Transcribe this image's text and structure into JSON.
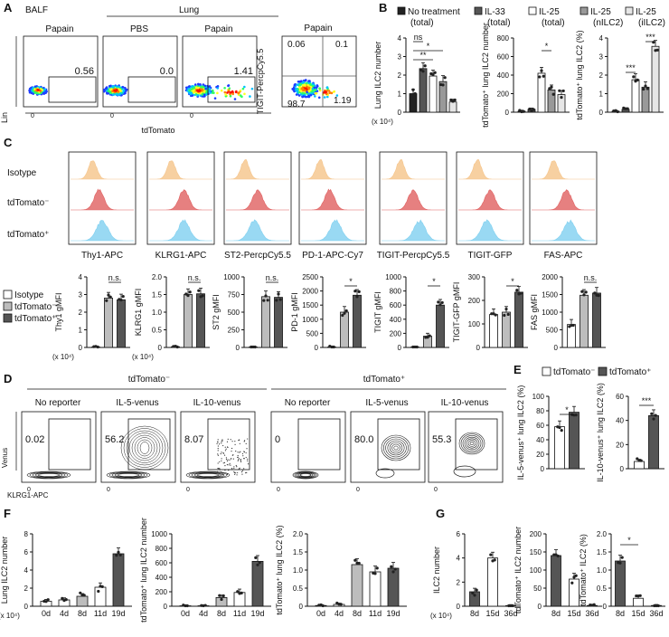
{
  "panels": {
    "A": "A",
    "B": "B",
    "C": "C",
    "D": "D",
    "E": "E",
    "F": "F",
    "G": "G"
  },
  "colors": {
    "isotype": "#f5c48a",
    "neg": "#e06060",
    "pos": "#7fd0f0",
    "bar_white": "#ffffff",
    "bar_light": "#bdbdbd",
    "bar_mid": "#8c8c8c",
    "bar_dark": "#555555",
    "bar_black": "#222222"
  },
  "panelA": {
    "balf_label": "BALF",
    "lung_label": "Lung",
    "plot_titles": [
      "Papain",
      "PBS",
      "Papain",
      "Papain"
    ],
    "gate_values": [
      "0.56",
      "0.0",
      "1.41"
    ],
    "quadrants": [
      "0.06",
      "0.1",
      "98.7",
      "1.19"
    ],
    "ylabel": "Lin",
    "xlabel": "tdTomato",
    "ylabel4": "TIGIT-PercpCy5.5",
    "tick": "0"
  },
  "panelB": {
    "legend": [
      {
        "label": "No treatment",
        "sub": "(total)",
        "color": "#222222"
      },
      {
        "label": "IL-33",
        "sub": "(total)",
        "color": "#555555"
      },
      {
        "label": "IL-25",
        "sub": "(total)",
        "color": "#ffffff"
      },
      {
        "label": "IL-25",
        "sub": "(nILC2)",
        "color": "#999999"
      },
      {
        "label": "IL-25",
        "sub": "(iILC2)",
        "color": "#e6e6e6"
      }
    ],
    "chart_data": [
      {
        "type": "bar",
        "ylabel": "Lung ILC2 number",
        "unit": "(x 10⁴)",
        "ylim": [
          0,
          4
        ],
        "yticks": [
          "0",
          "1",
          "2",
          "3",
          "4"
        ],
        "values": [
          1.0,
          2.35,
          1.95,
          1.65,
          0.55
        ],
        "sig": [
          "**",
          "*",
          "ns"
        ]
      },
      {
        "type": "bar",
        "ylabel": "tdTomato⁺ lung ILC2 number",
        "ylim": [
          0,
          800
        ],
        "yticks": [
          "0",
          "200",
          "400",
          "600",
          "800"
        ],
        "values": [
          10,
          30,
          420,
          240,
          190
        ],
        "sig": [
          "*"
        ]
      },
      {
        "type": "bar",
        "ylabel": "tdTomato⁺ lung ILC2 (%)",
        "ylim": [
          0,
          4
        ],
        "yticks": [
          "0",
          "1",
          "2",
          "3",
          "4"
        ],
        "values": [
          0.05,
          0.15,
          1.75,
          1.35,
          3.55
        ],
        "sig": [
          "***",
          "***"
        ]
      }
    ]
  },
  "panelC": {
    "row_labels": [
      "Isotype",
      "tdTomato⁻",
      "tdTomato⁺"
    ],
    "markers": [
      "Thy1-APC",
      "KLRG1-APC",
      "ST2-PercpCy5.5",
      "PD-1-APC-Cy7",
      "TIGIT-PercpCy5.5",
      "TIGIT-GFP",
      "FAS-APC"
    ],
    "legend": [
      "Isotype",
      "tdTomato⁻",
      "tdTomato⁺"
    ],
    "chart_data": [
      {
        "type": "bar",
        "ylabel": "Thy1 gMFI",
        "unit": "(x 10⁴)",
        "ylim": [
          0,
          4
        ],
        "yticks": [
          "0",
          "1",
          "2",
          "3",
          "4"
        ],
        "values": [
          0.02,
          2.8,
          2.7
        ],
        "sig": "n.s."
      },
      {
        "type": "bar",
        "ylabel": "KLRG1 gMFI",
        "unit": "(x 10⁴)",
        "ylim": [
          0,
          2
        ],
        "yticks": [
          "0",
          "0.5",
          "1.0",
          "1.5",
          "2.0"
        ],
        "values": [
          0.02,
          1.5,
          1.52
        ],
        "sig": "n.s."
      },
      {
        "type": "bar",
        "ylabel": "ST2 gMFI",
        "ylim": [
          0,
          1000
        ],
        "yticks": [
          "0",
          "250",
          "500",
          "750",
          "1000"
        ],
        "values": [
          5,
          720,
          710
        ],
        "sig": "n.s."
      },
      {
        "type": "bar",
        "ylabel": "PD-1 gMFI",
        "ylim": [
          0,
          2500
        ],
        "yticks": [
          "0",
          "500",
          "1000",
          "1500",
          "2000",
          "2500"
        ],
        "values": [
          10,
          1250,
          1850
        ],
        "sig": "*"
      },
      {
        "type": "bar",
        "ylabel": "TIGIT gMFI",
        "ylim": [
          0,
          1000
        ],
        "yticks": [
          "0",
          "200",
          "400",
          "600",
          "800",
          "1000"
        ],
        "values": [
          5,
          160,
          600
        ],
        "sig": "*"
      },
      {
        "type": "bar",
        "ylabel": "TIGIT-GFP gMFI",
        "ylim": [
          0,
          300
        ],
        "yticks": [
          "0",
          "100",
          "200",
          "300"
        ],
        "values": [
          140,
          150,
          235
        ],
        "sig": "*"
      },
      {
        "type": "bar",
        "ylabel": "FAS gMFI",
        "ylim": [
          0,
          2000
        ],
        "yticks": [
          "0",
          "500",
          "1000",
          "1500",
          "2000"
        ],
        "values": [
          650,
          1480,
          1540
        ],
        "sig": "n.s."
      }
    ]
  },
  "panelD": {
    "group_neg": "tdTomato⁻",
    "group_pos": "tdTomato⁺",
    "titles": [
      "No reporter",
      "IL-5-venus",
      "IL-10-venus",
      "No reporter",
      "IL-5-venus",
      "IL-10-venus"
    ],
    "values": [
      "0.02",
      "56.2",
      "8.07",
      "0",
      "80.0",
      "55.3"
    ],
    "ylabel": "Venus",
    "xlabel": "KLRG1-APC",
    "tick": "0"
  },
  "panelE": {
    "legend": [
      "tdTomato⁻",
      "tdTomato⁺"
    ],
    "chart_data": [
      {
        "type": "bar",
        "ylabel": "IL-5-venus⁺ lung ILC2 (%)",
        "ylim": [
          0,
          100
        ],
        "yticks": [
          "0",
          "20",
          "40",
          "60",
          "80",
          "100"
        ],
        "values": [
          58,
          78
        ],
        "sig": "*"
      },
      {
        "type": "bar",
        "ylabel": "IL-10-venus⁺ lung ILC2 (%)",
        "ylim": [
          0,
          60
        ],
        "yticks": [
          "0",
          "20",
          "40",
          "60"
        ],
        "values": [
          6,
          44
        ],
        "sig": "***"
      }
    ]
  },
  "panelF": {
    "chart_data": [
      {
        "type": "bar",
        "categories": [
          "0d",
          "4d",
          "8d",
          "11d",
          "19d"
        ],
        "ylabel": "Lung ILC2 number",
        "unit": "(x 10⁴)",
        "ylim": [
          0,
          8
        ],
        "yticks": [
          "0",
          "2",
          "4",
          "6",
          "8"
        ],
        "values": [
          0.55,
          0.7,
          1.1,
          2.1,
          5.8
        ]
      },
      {
        "type": "bar",
        "categories": [
          "0d",
          "4d",
          "8d",
          "11d",
          "19d"
        ],
        "ylabel": "tdTomato⁺ lung ILC2 number",
        "ylim": [
          0,
          1000
        ],
        "yticks": [
          "0",
          "200",
          "400",
          "600",
          "800",
          "1000"
        ],
        "values": [
          3,
          5,
          120,
          190,
          620
        ]
      },
      {
        "type": "bar",
        "categories": [
          "0d",
          "4d",
          "8d",
          "11d",
          "19d"
        ],
        "ylabel": "tdTomato⁺ lung ILC2 (%)",
        "ylim": [
          0,
          2
        ],
        "yticks": [
          "0",
          "0.5",
          "1.0",
          "1.5",
          "2.0"
        ],
        "values": [
          0.02,
          0.05,
          1.15,
          0.95,
          1.05
        ]
      }
    ]
  },
  "panelG": {
    "chart_data": [
      {
        "type": "bar",
        "categories": [
          "8d",
          "15d",
          "36d"
        ],
        "ylabel": "ILC2 number",
        "unit": "(x 10⁴)",
        "ylim": [
          0,
          6
        ],
        "yticks": [
          "0",
          "2",
          "4",
          "6"
        ],
        "values": [
          1.2,
          4.0,
          0.05
        ]
      },
      {
        "type": "bar",
        "categories": [
          "8d",
          "15d",
          "36d"
        ],
        "ylabel": "tdTomato⁺ ILC2 number",
        "ylim": [
          0,
          200
        ],
        "yticks": [
          "0",
          "50",
          "100",
          "150",
          "200"
        ],
        "values": [
          140,
          75,
          2
        ]
      },
      {
        "type": "bar",
        "categories": [
          "8d",
          "15d",
          "36d"
        ],
        "ylabel": "tdTomato⁺ ILC2 (%)",
        "ylim": [
          0,
          2
        ],
        "yticks": [
          "0",
          "0.5",
          "1.0",
          "1.5",
          "2.0"
        ],
        "values": [
          1.25,
          0.22,
          0.02
        ],
        "sig": "*"
      }
    ]
  }
}
